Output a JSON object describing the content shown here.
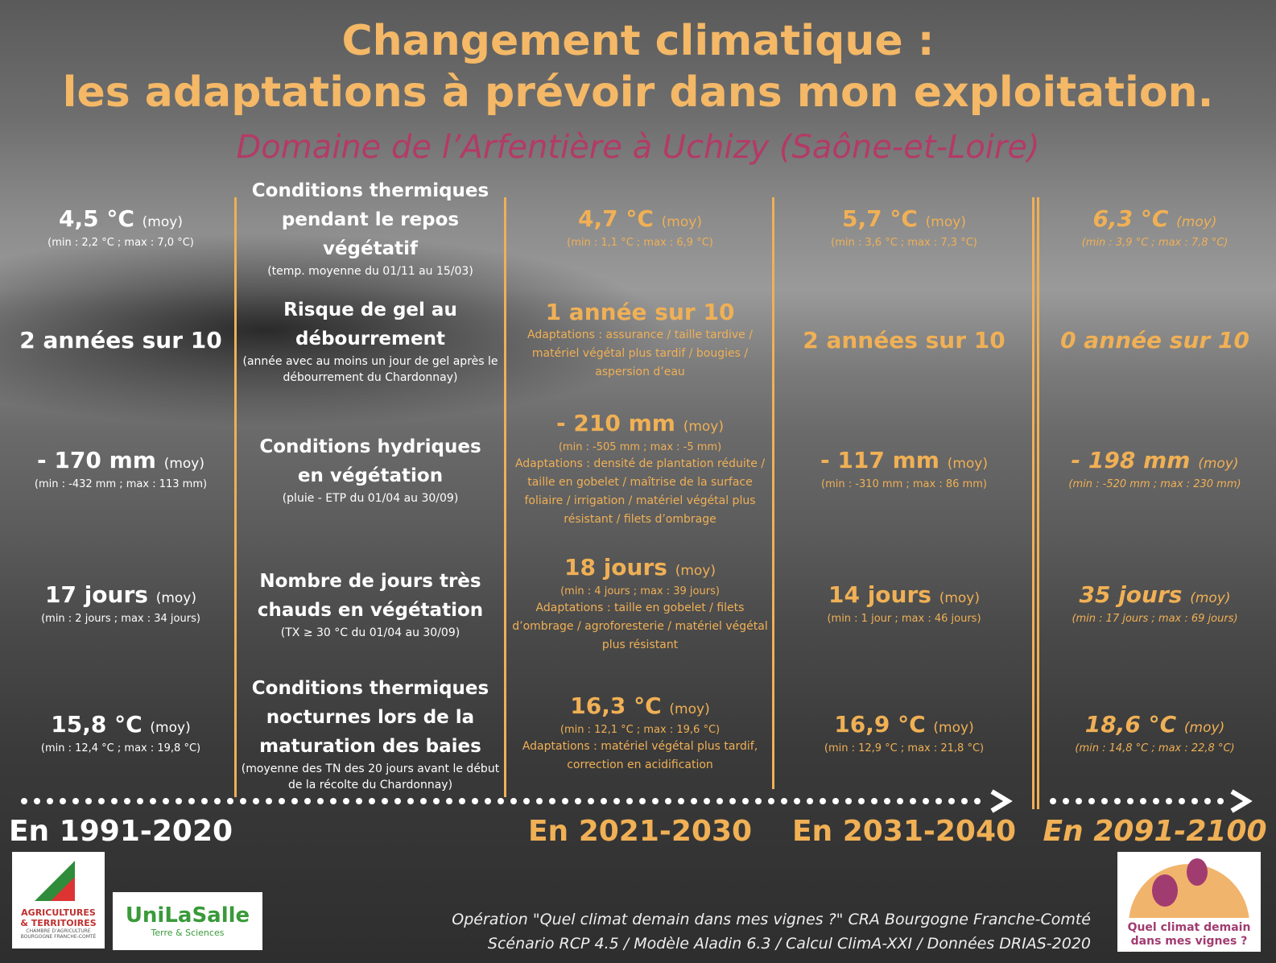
{
  "header": {
    "title": [
      "Changement climatique :",
      "les adaptations à prévoir dans mon exploitation."
    ],
    "subtitle": "Domaine de l’Arfentière à Uchizy (Saône-et-Loire)"
  },
  "periods": [
    "En 1991-2020",
    "En 2021-2030",
    "En 2031-2040",
    "En 2091-2100"
  ],
  "indicators": [
    {
      "label": [
        "Conditions thermiques",
        "pendant le repos végétatif"
      ],
      "note": "(temp. moyenne du 01/11 au 15/03)",
      "cells": [
        {
          "main": "4,5 °C",
          "unit": "(moy)",
          "range": "(min : 2,2 °C ; max : 7,0 °C)"
        },
        {
          "main": "4,7 °C",
          "unit": "(moy)",
          "range": "(min : 1,1 °C ; max : 6,9 °C)"
        },
        {
          "main": "5,7 °C",
          "unit": "(moy)",
          "range": "(min : 3,6 °C ; max : 7,3 °C)"
        },
        {
          "main": "6,3 °C",
          "unit": "(moy)",
          "range": "(min : 3,9 °C ; max : 7,8 °C)"
        }
      ]
    },
    {
      "label": [
        "Risque de gel au",
        "débourrement"
      ],
      "note": "(année avec au moins un jour de gel après le débourrement du Chardonnay)",
      "cells": [
        {
          "main": "2 années sur 10"
        },
        {
          "main": "1 année sur 10",
          "adaptations": "Adaptations : assurance / taille tardive / matériel végétal plus tardif / bougies / aspersion d’eau"
        },
        {
          "main": "2 années sur 10"
        },
        {
          "main": "0 année sur 10"
        }
      ]
    },
    {
      "label": [
        "Conditions hydriques",
        "en végétation"
      ],
      "note": "(pluie - ETP du 01/04 au 30/09)",
      "cells": [
        {
          "main": "- 170 mm",
          "unit": "(moy)",
          "range": "(min : -432 mm ; max : 113 mm)"
        },
        {
          "main": "- 210 mm",
          "unit": "(moy)",
          "range": "(min : -505 mm ; max : -5 mm)",
          "adaptations": "Adaptations : densité de plantation réduite / taille en gobelet / maîtrise de la surface foliaire / irrigation / matériel végétal plus résistant / filets d’ombrage"
        },
        {
          "main": "- 117 mm",
          "unit": "(moy)",
          "range": "(min : -310 mm ; max : 86 mm)"
        },
        {
          "main": "- 198 mm",
          "unit": "(moy)",
          "range": "(min : -520 mm ; max : 230 mm)"
        }
      ]
    },
    {
      "label": [
        "Nombre de jours très",
        "chauds en végétation"
      ],
      "note": "(TX ≥ 30 °C du 01/04 au 30/09)",
      "cells": [
        {
          "main": "17 jours",
          "unit": "(moy)",
          "range": "(min : 2 jours ; max : 34 jours)"
        },
        {
          "main": "18 jours",
          "unit": "(moy)",
          "range": "(min : 4 jours ; max : 39 jours)",
          "adaptations": "Adaptations : taille en gobelet / filets d’ombrage / agroforesterie / matériel végétal plus résistant"
        },
        {
          "main": "14 jours",
          "unit": "(moy)",
          "range": "(min : 1 jour ; max : 46 jours)"
        },
        {
          "main": "35 jours",
          "unit": "(moy)",
          "range": "(min : 17 jours ; max : 69 jours)"
        }
      ]
    },
    {
      "label": [
        "Conditions thermiques",
        "nocturnes lors de la",
        "maturation des baies"
      ],
      "note": "(moyenne des TN des 20 jours avant le début de la récolte du Chardonnay)",
      "cells": [
        {
          "main": "15,8 °C",
          "unit": "(moy)",
          "range": "(min : 12,4 °C ; max : 19,8 °C)"
        },
        {
          "main": "16,3 °C",
          "unit": "(moy)",
          "range": "(min : 12,1 °C ; max : 19,6 °C)",
          "adaptations": "Adaptations : matériel végétal plus tardif, correction en acidification"
        },
        {
          "main": "16,9 °C",
          "unit": "(moy)",
          "range": "(min : 12,9 °C ; max : 21,8 °C)"
        },
        {
          "main": "18,6 °C",
          "unit": "(moy)",
          "range": "(min : 14,8 °C ; max : 22,8 °C)"
        }
      ]
    }
  ],
  "footer": {
    "credits": [
      "Opération \"Quel climat demain dans mes vignes ?\" CRA Bourgogne Franche-Comté",
      "Scénario RCP 4.5 / Modèle Aladin 6.3 / Calcul ClimA-XXI / Données DRIAS-2020"
    ],
    "logos": {
      "chambre": [
        "AGRICULTURES",
        "& TERRITOIRES",
        "CHAMBRE D’AGRICULTURE BOURGOGNE FRANCHE-COMTÉ"
      ],
      "unilasalle": [
        "UniLaSalle",
        "Terre & Sciences"
      ],
      "climat": [
        "Quel climat demain",
        "dans mes vignes ?"
      ]
    }
  }
}
